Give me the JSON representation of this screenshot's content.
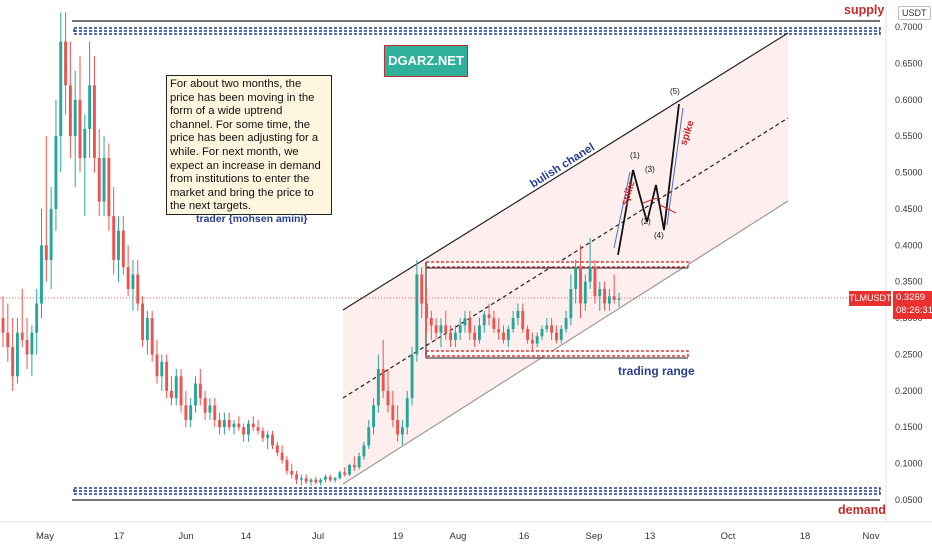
{
  "chart_data": {
    "type": "candlestick",
    "pair": "TLMUSDT",
    "quote_currency": "USDT",
    "last_price": "0.3269",
    "countdown": "08:26:31",
    "yaxis": {
      "ticks": [
        "0.7000",
        "0.6500",
        "0.6000",
        "0.5500",
        "0.5000",
        "0.4500",
        "0.4000",
        "0.3500",
        "0.3000",
        "0.2500",
        "0.2000",
        "0.1500",
        "0.1000",
        "0.0500"
      ],
      "ylim": [
        0.03,
        0.72
      ]
    },
    "xaxis": {
      "ticks": [
        "May",
        "17",
        "Jun",
        "14",
        "Jul",
        "19",
        "Aug",
        "16",
        "Sep",
        "13",
        "Oct",
        "18",
        "Nov"
      ]
    },
    "candles": [
      {
        "o": 0.3,
        "h": 0.33,
        "l": 0.26,
        "c": 0.28
      },
      {
        "o": 0.28,
        "h": 0.32,
        "l": 0.24,
        "c": 0.26
      },
      {
        "o": 0.26,
        "h": 0.3,
        "l": 0.2,
        "c": 0.22
      },
      {
        "o": 0.22,
        "h": 0.3,
        "l": 0.21,
        "c": 0.28
      },
      {
        "o": 0.28,
        "h": 0.34,
        "l": 0.26,
        "c": 0.27
      },
      {
        "o": 0.27,
        "h": 0.3,
        "l": 0.23,
        "c": 0.25
      },
      {
        "o": 0.25,
        "h": 0.29,
        "l": 0.22,
        "c": 0.28
      },
      {
        "o": 0.28,
        "h": 0.34,
        "l": 0.25,
        "c": 0.32
      },
      {
        "o": 0.32,
        "h": 0.45,
        "l": 0.3,
        "c": 0.4
      },
      {
        "o": 0.4,
        "h": 0.55,
        "l": 0.35,
        "c": 0.38
      },
      {
        "o": 0.38,
        "h": 0.48,
        "l": 0.34,
        "c": 0.45
      },
      {
        "o": 0.45,
        "h": 0.6,
        "l": 0.42,
        "c": 0.55
      },
      {
        "o": 0.55,
        "h": 0.72,
        "l": 0.5,
        "c": 0.68
      },
      {
        "o": 0.68,
        "h": 0.72,
        "l": 0.58,
        "c": 0.62
      },
      {
        "o": 0.62,
        "h": 0.68,
        "l": 0.52,
        "c": 0.55
      },
      {
        "o": 0.55,
        "h": 0.64,
        "l": 0.48,
        "c": 0.6
      },
      {
        "o": 0.6,
        "h": 0.66,
        "l": 0.5,
        "c": 0.52
      },
      {
        "o": 0.52,
        "h": 0.58,
        "l": 0.44,
        "c": 0.56
      },
      {
        "o": 0.56,
        "h": 0.68,
        "l": 0.52,
        "c": 0.62
      },
      {
        "o": 0.62,
        "h": 0.66,
        "l": 0.5,
        "c": 0.52
      },
      {
        "o": 0.52,
        "h": 0.56,
        "l": 0.44,
        "c": 0.46
      },
      {
        "o": 0.46,
        "h": 0.55,
        "l": 0.44,
        "c": 0.52
      },
      {
        "o": 0.52,
        "h": 0.54,
        "l": 0.42,
        "c": 0.44
      },
      {
        "o": 0.44,
        "h": 0.48,
        "l": 0.36,
        "c": 0.38
      },
      {
        "o": 0.38,
        "h": 0.44,
        "l": 0.35,
        "c": 0.42
      },
      {
        "o": 0.42,
        "h": 0.44,
        "l": 0.36,
        "c": 0.37
      },
      {
        "o": 0.37,
        "h": 0.4,
        "l": 0.33,
        "c": 0.34
      },
      {
        "o": 0.34,
        "h": 0.38,
        "l": 0.31,
        "c": 0.36
      },
      {
        "o": 0.36,
        "h": 0.38,
        "l": 0.31,
        "c": 0.32
      },
      {
        "o": 0.32,
        "h": 0.33,
        "l": 0.26,
        "c": 0.27
      },
      {
        "o": 0.27,
        "h": 0.31,
        "l": 0.25,
        "c": 0.3
      },
      {
        "o": 0.3,
        "h": 0.31,
        "l": 0.24,
        "c": 0.25
      },
      {
        "o": 0.25,
        "h": 0.27,
        "l": 0.21,
        "c": 0.22
      },
      {
        "o": 0.22,
        "h": 0.25,
        "l": 0.2,
        "c": 0.24
      },
      {
        "o": 0.24,
        "h": 0.25,
        "l": 0.19,
        "c": 0.2
      },
      {
        "o": 0.2,
        "h": 0.22,
        "l": 0.18,
        "c": 0.19
      },
      {
        "o": 0.19,
        "h": 0.23,
        "l": 0.18,
        "c": 0.22
      },
      {
        "o": 0.22,
        "h": 0.23,
        "l": 0.17,
        "c": 0.18
      },
      {
        "o": 0.18,
        "h": 0.2,
        "l": 0.15,
        "c": 0.16
      },
      {
        "o": 0.16,
        "h": 0.19,
        "l": 0.15,
        "c": 0.18
      },
      {
        "o": 0.18,
        "h": 0.22,
        "l": 0.17,
        "c": 0.21
      },
      {
        "o": 0.21,
        "h": 0.23,
        "l": 0.18,
        "c": 0.19
      },
      {
        "o": 0.19,
        "h": 0.2,
        "l": 0.16,
        "c": 0.17
      },
      {
        "o": 0.17,
        "h": 0.19,
        "l": 0.16,
        "c": 0.18
      },
      {
        "o": 0.18,
        "h": 0.19,
        "l": 0.15,
        "c": 0.16
      },
      {
        "o": 0.16,
        "h": 0.17,
        "l": 0.14,
        "c": 0.15
      },
      {
        "o": 0.15,
        "h": 0.17,
        "l": 0.14,
        "c": 0.16
      },
      {
        "o": 0.16,
        "h": 0.17,
        "l": 0.145,
        "c": 0.15
      },
      {
        "o": 0.15,
        "h": 0.16,
        "l": 0.14,
        "c": 0.155
      },
      {
        "o": 0.155,
        "h": 0.165,
        "l": 0.145,
        "c": 0.15
      },
      {
        "o": 0.15,
        "h": 0.155,
        "l": 0.13,
        "c": 0.14
      },
      {
        "o": 0.14,
        "h": 0.16,
        "l": 0.13,
        "c": 0.155
      },
      {
        "o": 0.155,
        "h": 0.165,
        "l": 0.145,
        "c": 0.15
      },
      {
        "o": 0.15,
        "h": 0.16,
        "l": 0.14,
        "c": 0.145
      },
      {
        "o": 0.145,
        "h": 0.15,
        "l": 0.13,
        "c": 0.135
      },
      {
        "o": 0.135,
        "h": 0.145,
        "l": 0.12,
        "c": 0.14
      },
      {
        "o": 0.14,
        "h": 0.145,
        "l": 0.12,
        "c": 0.125
      },
      {
        "o": 0.125,
        "h": 0.13,
        "l": 0.11,
        "c": 0.115
      },
      {
        "o": 0.115,
        "h": 0.125,
        "l": 0.1,
        "c": 0.105
      },
      {
        "o": 0.105,
        "h": 0.11,
        "l": 0.085,
        "c": 0.09
      },
      {
        "o": 0.09,
        "h": 0.1,
        "l": 0.08,
        "c": 0.085
      },
      {
        "o": 0.085,
        "h": 0.09,
        "l": 0.072,
        "c": 0.078
      },
      {
        "o": 0.078,
        "h": 0.085,
        "l": 0.07,
        "c": 0.08
      },
      {
        "o": 0.08,
        "h": 0.085,
        "l": 0.072,
        "c": 0.075
      },
      {
        "o": 0.075,
        "h": 0.08,
        "l": 0.07,
        "c": 0.078
      },
      {
        "o": 0.078,
        "h": 0.082,
        "l": 0.072,
        "c": 0.074
      },
      {
        "o": 0.074,
        "h": 0.08,
        "l": 0.07,
        "c": 0.078
      },
      {
        "o": 0.078,
        "h": 0.085,
        "l": 0.074,
        "c": 0.082
      },
      {
        "o": 0.082,
        "h": 0.085,
        "l": 0.075,
        "c": 0.077
      },
      {
        "o": 0.077,
        "h": 0.082,
        "l": 0.074,
        "c": 0.08
      },
      {
        "o": 0.08,
        "h": 0.09,
        "l": 0.078,
        "c": 0.088
      },
      {
        "o": 0.088,
        "h": 0.095,
        "l": 0.082,
        "c": 0.085
      },
      {
        "o": 0.085,
        "h": 0.1,
        "l": 0.083,
        "c": 0.098
      },
      {
        "o": 0.098,
        "h": 0.11,
        "l": 0.09,
        "c": 0.095
      },
      {
        "o": 0.095,
        "h": 0.115,
        "l": 0.092,
        "c": 0.11
      },
      {
        "o": 0.11,
        "h": 0.13,
        "l": 0.105,
        "c": 0.125
      },
      {
        "o": 0.125,
        "h": 0.16,
        "l": 0.12,
        "c": 0.15
      },
      {
        "o": 0.15,
        "h": 0.19,
        "l": 0.14,
        "c": 0.18
      },
      {
        "o": 0.18,
        "h": 0.25,
        "l": 0.17,
        "c": 0.23
      },
      {
        "o": 0.23,
        "h": 0.27,
        "l": 0.19,
        "c": 0.2
      },
      {
        "o": 0.2,
        "h": 0.23,
        "l": 0.17,
        "c": 0.18
      },
      {
        "o": 0.18,
        "h": 0.2,
        "l": 0.15,
        "c": 0.16
      },
      {
        "o": 0.16,
        "h": 0.18,
        "l": 0.13,
        "c": 0.14
      },
      {
        "o": 0.14,
        "h": 0.16,
        "l": 0.125,
        "c": 0.15
      },
      {
        "o": 0.15,
        "h": 0.2,
        "l": 0.14,
        "c": 0.19
      },
      {
        "o": 0.19,
        "h": 0.26,
        "l": 0.18,
        "c": 0.25
      },
      {
        "o": 0.25,
        "h": 0.38,
        "l": 0.24,
        "c": 0.36
      },
      {
        "o": 0.36,
        "h": 0.37,
        "l": 0.3,
        "c": 0.32
      },
      {
        "o": 0.32,
        "h": 0.34,
        "l": 0.28,
        "c": 0.3
      },
      {
        "o": 0.3,
        "h": 0.31,
        "l": 0.27,
        "c": 0.29
      },
      {
        "o": 0.29,
        "h": 0.3,
        "l": 0.27,
        "c": 0.28
      },
      {
        "o": 0.28,
        "h": 0.3,
        "l": 0.26,
        "c": 0.29
      },
      {
        "o": 0.29,
        "h": 0.31,
        "l": 0.27,
        "c": 0.28
      },
      {
        "o": 0.28,
        "h": 0.29,
        "l": 0.26,
        "c": 0.27
      },
      {
        "o": 0.27,
        "h": 0.29,
        "l": 0.26,
        "c": 0.28
      },
      {
        "o": 0.28,
        "h": 0.3,
        "l": 0.27,
        "c": 0.29
      },
      {
        "o": 0.29,
        "h": 0.31,
        "l": 0.28,
        "c": 0.3
      },
      {
        "o": 0.3,
        "h": 0.31,
        "l": 0.27,
        "c": 0.28
      },
      {
        "o": 0.28,
        "h": 0.29,
        "l": 0.26,
        "c": 0.27
      },
      {
        "o": 0.27,
        "h": 0.3,
        "l": 0.265,
        "c": 0.29
      },
      {
        "o": 0.29,
        "h": 0.31,
        "l": 0.28,
        "c": 0.305
      },
      {
        "o": 0.305,
        "h": 0.32,
        "l": 0.29,
        "c": 0.3
      },
      {
        "o": 0.3,
        "h": 0.31,
        "l": 0.28,
        "c": 0.285
      },
      {
        "o": 0.285,
        "h": 0.3,
        "l": 0.27,
        "c": 0.28
      },
      {
        "o": 0.28,
        "h": 0.29,
        "l": 0.265,
        "c": 0.27
      },
      {
        "o": 0.27,
        "h": 0.29,
        "l": 0.26,
        "c": 0.285
      },
      {
        "o": 0.285,
        "h": 0.31,
        "l": 0.28,
        "c": 0.3
      },
      {
        "o": 0.3,
        "h": 0.32,
        "l": 0.29,
        "c": 0.31
      },
      {
        "o": 0.31,
        "h": 0.32,
        "l": 0.28,
        "c": 0.285
      },
      {
        "o": 0.285,
        "h": 0.29,
        "l": 0.265,
        "c": 0.27
      },
      {
        "o": 0.27,
        "h": 0.28,
        "l": 0.255,
        "c": 0.265
      },
      {
        "o": 0.265,
        "h": 0.28,
        "l": 0.26,
        "c": 0.275
      },
      {
        "o": 0.275,
        "h": 0.29,
        "l": 0.27,
        "c": 0.285
      },
      {
        "o": 0.285,
        "h": 0.3,
        "l": 0.28,
        "c": 0.29
      },
      {
        "o": 0.29,
        "h": 0.3,
        "l": 0.27,
        "c": 0.28
      },
      {
        "o": 0.28,
        "h": 0.29,
        "l": 0.265,
        "c": 0.27
      },
      {
        "o": 0.27,
        "h": 0.29,
        "l": 0.265,
        "c": 0.285
      },
      {
        "o": 0.285,
        "h": 0.31,
        "l": 0.28,
        "c": 0.3
      },
      {
        "o": 0.3,
        "h": 0.36,
        "l": 0.29,
        "c": 0.34
      },
      {
        "o": 0.34,
        "h": 0.38,
        "l": 0.32,
        "c": 0.37
      },
      {
        "o": 0.37,
        "h": 0.4,
        "l": 0.3,
        "c": 0.32
      },
      {
        "o": 0.32,
        "h": 0.36,
        "l": 0.31,
        "c": 0.35
      },
      {
        "o": 0.35,
        "h": 0.41,
        "l": 0.34,
        "c": 0.37
      },
      {
        "o": 0.37,
        "h": 0.38,
        "l": 0.32,
        "c": 0.33
      },
      {
        "o": 0.33,
        "h": 0.35,
        "l": 0.31,
        "c": 0.34
      },
      {
        "o": 0.34,
        "h": 0.35,
        "l": 0.31,
        "c": 0.32
      },
      {
        "o": 0.32,
        "h": 0.34,
        "l": 0.31,
        "c": 0.33
      },
      {
        "o": 0.33,
        "h": 0.36,
        "l": 0.32,
        "c": 0.325
      },
      {
        "o": 0.325,
        "h": 0.335,
        "l": 0.315,
        "c": 0.3269
      }
    ],
    "levels": {
      "supply": {
        "value": 0.697,
        "label": "supply"
      },
      "demand": {
        "value": 0.072,
        "label": "demand"
      },
      "range_top": {
        "value": 0.374
      },
      "range_bottom": {
        "value": 0.252,
        "label": "trading range"
      }
    },
    "channel_label": "bulish chanel",
    "wave_labels": [
      "(1)",
      "(2)",
      "(3)",
      "(4)",
      "(5)"
    ],
    "spike_label": "spike",
    "colors": {
      "up": "#26a69a",
      "down": "#ef5350",
      "level_red": "#e53935",
      "level_blue": "#1e3c96",
      "channel_fill": "#fde8e8"
    }
  },
  "annotation": {
    "note": "For about two months, the price has been moving in the form of a wide uptrend channel. For some time, the price has been adjusting for a while. For next month, we expect an increase in demand from institutions to enter the market and bring the price to the next targets.",
    "signature": "trader {mohsen amini}",
    "brand": "DGARZ.NET"
  }
}
